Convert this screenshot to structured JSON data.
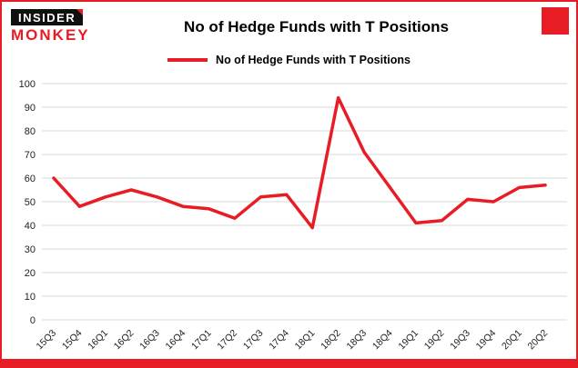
{
  "header": {
    "logo_line1": "INSIDER",
    "logo_line2": "MONKEY",
    "title": "No of Hedge Funds with T Positions"
  },
  "legend": {
    "label": "No of Hedge Funds with T Positions"
  },
  "colors": {
    "accent": "#e81c24",
    "grid": "#d9d9d9",
    "logo_bg": "#101010"
  },
  "chart_data": {
    "type": "line",
    "title": "No of Hedge Funds with T Positions",
    "categories": [
      "15Q3",
      "15Q4",
      "16Q1",
      "16Q2",
      "16Q3",
      "16Q4",
      "17Q1",
      "17Q2",
      "17Q3",
      "17Q4",
      "18Q1",
      "18Q2",
      "18Q3",
      "18Q4",
      "19Q1",
      "19Q2",
      "19Q3",
      "19Q4",
      "20Q1",
      "20Q2"
    ],
    "series": [
      {
        "name": "No of Hedge Funds with T Positions",
        "values": [
          60,
          48,
          52,
          55,
          52,
          48,
          47,
          43,
          52,
          53,
          39,
          94,
          71,
          56,
          41,
          42,
          51,
          50,
          56,
          57
        ]
      }
    ],
    "ylim": [
      0,
      100
    ],
    "yticks": [
      0,
      10,
      20,
      30,
      40,
      50,
      60,
      70,
      80,
      90,
      100
    ],
    "grid": true,
    "legend_position": "top",
    "line_color": "#e81c24",
    "grid_color": "#d9d9d9"
  }
}
